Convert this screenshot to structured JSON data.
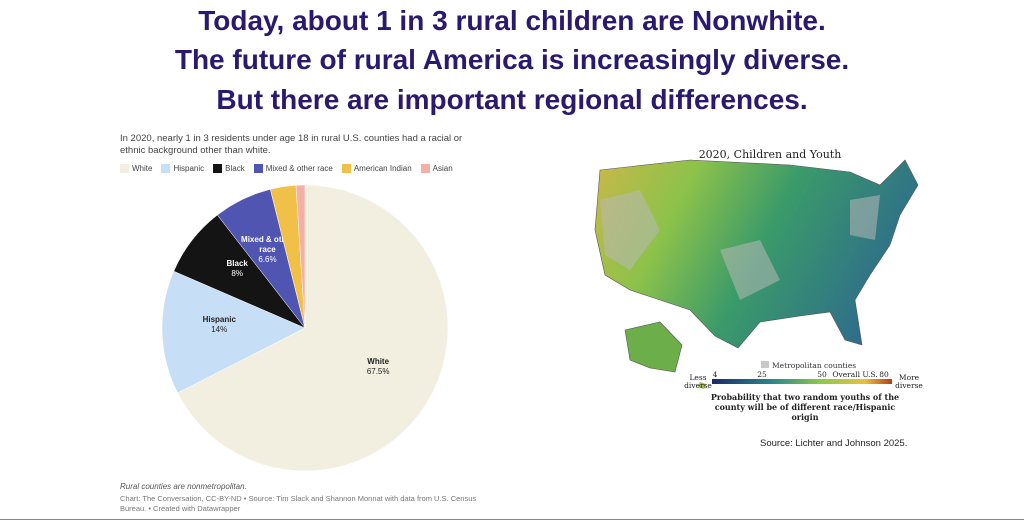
{
  "slide": {
    "title_lines": [
      "Today, about 1 in 3 rural children are Nonwhite.",
      "The future of rural America is increasingly diverse.",
      "But there are important regional differences."
    ]
  },
  "chart_data": {
    "type": "pie",
    "subtitle": "In 2020, nearly 1 in 3 residents under age 18 in rural U.S. counties had a racial or ethnic background other than white.",
    "categories": [
      "White",
      "Hispanic",
      "Black",
      "Mixed & other race",
      "American Indian",
      "Asian"
    ],
    "values": [
      67.5,
      14,
      8,
      6.6,
      2.9,
      1.0
    ],
    "value_labels": [
      "67.5%",
      "14%",
      "8%",
      "6.6%",
      null,
      null
    ],
    "colors": [
      "#f3efe0",
      "#c6dff6",
      "#141414",
      "#4f55b0",
      "#f1c048",
      "#f3b0a4"
    ],
    "label_colors": [
      "#222222",
      "#222222",
      "#ffffff",
      "#ffffff",
      null,
      null
    ],
    "notes": [
      "Rural counties are nonmetropolitan.",
      "Chart: The Conversation, CC-BY-ND • Source: Tim Slack and Shannon Monnat with data from U.S. Census Bureau. • Created with Datawrapper"
    ]
  },
  "map": {
    "title": "2020, Children and Youth",
    "legend_metro": "Metropolitan counties",
    "scale_low": "Less diverse",
    "scale_high": "More diverse",
    "scale_ticks": [
      "4",
      "25",
      "50",
      "Overall U.S.",
      "80"
    ],
    "caption": "Probability that two random youths of the county will be of different race/Hispanic origin",
    "source": "Source: Lichter and Johnson 2025."
  }
}
